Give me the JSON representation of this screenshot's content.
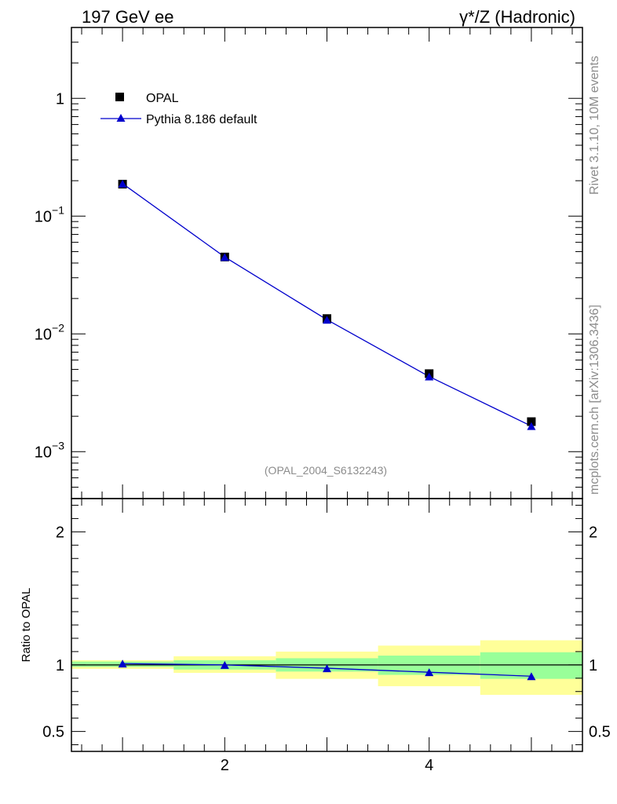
{
  "header": {
    "left": "197 GeV ee",
    "right": "γ*/Z (Hadronic)"
  },
  "side_labels": {
    "rivet": "Rivet 3.1.10,  10M events",
    "mcplots": "mcplots.cern.ch [arXiv:1306.3436]"
  },
  "chart_data": [
    {
      "type": "scatter",
      "title": "",
      "xlabel": "",
      "ylabel": "",
      "yscale": "log",
      "xlim": [
        0.5,
        5.5
      ],
      "ylim": [
        0.0004,
        4
      ],
      "xticks": [
        "2",
        "4"
      ],
      "yticks": [
        {
          "value": 1,
          "base": "1",
          "exp": ""
        },
        {
          "value": 0.1,
          "base": "10",
          "exp": "−1"
        },
        {
          "value": 0.01,
          "base": "10",
          "exp": "−2"
        },
        {
          "value": 0.001,
          "base": "10",
          "exp": "−3"
        }
      ],
      "watermark": "(OPAL_2004_S6132243)",
      "legend_position": "top-left",
      "series": [
        {
          "name": "OPAL",
          "marker": "square",
          "color": "#000000",
          "x": [
            1,
            2,
            3,
            4,
            5
          ],
          "y": [
            0.187,
            0.045,
            0.0135,
            0.0046,
            0.0018
          ]
        },
        {
          "name": "Pythia 8.186 default",
          "marker": "triangle",
          "color": "#0000cc",
          "x": [
            1,
            2,
            3,
            4,
            5
          ],
          "y": [
            0.189,
            0.045,
            0.0132,
            0.00435,
            0.00165
          ]
        }
      ]
    },
    {
      "type": "line",
      "title": "",
      "xlabel": "",
      "ylabel": "Ratio to OPAL",
      "xlim": [
        0.5,
        5.5
      ],
      "ylim": [
        0.35,
        2.25
      ],
      "xticks": [
        "2",
        "4"
      ],
      "yticks": [
        "0.5",
        "1",
        "2"
      ],
      "bands": {
        "inner_color": "#99ff99",
        "outer_color": "#ffff99",
        "bins": [
          {
            "xlo": 0.5,
            "xhi": 1.5,
            "inner": [
              0.985,
              1.025
            ],
            "outer": [
              0.97,
              1.035
            ]
          },
          {
            "xlo": 1.5,
            "xhi": 2.5,
            "inner": [
              0.965,
              1.035
            ],
            "outer": [
              0.94,
              1.065
            ]
          },
          {
            "xlo": 2.5,
            "xhi": 3.5,
            "inner": [
              0.95,
              1.05
            ],
            "outer": [
              0.895,
              1.1
            ]
          },
          {
            "xlo": 3.5,
            "xhi": 4.5,
            "inner": [
              0.925,
              1.07
            ],
            "outer": [
              0.84,
              1.145
            ]
          },
          {
            "xlo": 4.5,
            "xhi": 5.5,
            "inner": [
              0.895,
              1.095
            ],
            "outer": [
              0.775,
              1.185
            ]
          }
        ]
      },
      "series": [
        {
          "name": "Pythia 8.186 default",
          "color": "#0000cc",
          "x": [
            1,
            2,
            3,
            4,
            5
          ],
          "y": [
            1.01,
            1.0,
            0.975,
            0.945,
            0.915
          ]
        }
      ]
    }
  ]
}
